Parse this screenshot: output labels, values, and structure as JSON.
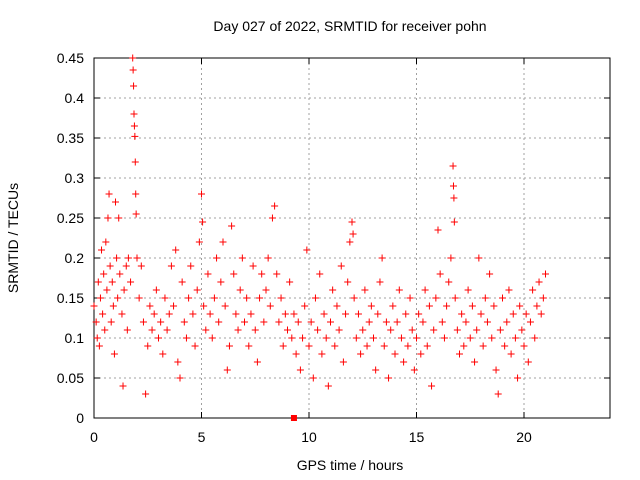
{
  "chart_data": {
    "type": "scatter",
    "title": "Day 027 of 2022, SRMTID for receiver pohn",
    "xlabel": "GPS time / hours",
    "ylabel": "SRMTID / TECUs",
    "xlim": [
      0,
      24
    ],
    "ylim": [
      0,
      0.45
    ],
    "x_ticks": [
      0,
      5,
      10,
      15,
      20
    ],
    "y_ticks": [
      0,
      0.05,
      0.1,
      0.15,
      0.2,
      0.25,
      0.3,
      0.35,
      0.4,
      0.45
    ],
    "x_tick_labels": [
      "0",
      "5",
      "10",
      "15",
      "20"
    ],
    "y_tick_labels": [
      "0",
      "0.05",
      "0.1",
      "0.15",
      "0.2",
      "0.25",
      "0.3",
      "0.35",
      "0.4",
      "0.45"
    ],
    "grid": true,
    "marker": "+",
    "color": "#ff0000",
    "series": [
      {
        "name": "SRMTID",
        "points": [
          [
            0.0,
            0.14
          ],
          [
            0.1,
            0.12
          ],
          [
            0.15,
            0.1
          ],
          [
            0.2,
            0.17
          ],
          [
            0.25,
            0.09
          ],
          [
            0.3,
            0.15
          ],
          [
            0.35,
            0.21
          ],
          [
            0.4,
            0.13
          ],
          [
            0.45,
            0.18
          ],
          [
            0.5,
            0.11
          ],
          [
            0.55,
            0.22
          ],
          [
            0.6,
            0.16
          ],
          [
            0.65,
            0.25
          ],
          [
            0.7,
            0.28
          ],
          [
            0.75,
            0.19
          ],
          [
            0.8,
            0.12
          ],
          [
            0.85,
            0.17
          ],
          [
            0.9,
            0.14
          ],
          [
            0.95,
            0.08
          ],
          [
            1.0,
            0.27
          ],
          [
            1.05,
            0.2
          ],
          [
            1.1,
            0.15
          ],
          [
            1.15,
            0.25
          ],
          [
            1.2,
            0.18
          ],
          [
            1.3,
            0.13
          ],
          [
            1.35,
            0.04
          ],
          [
            1.4,
            0.16
          ],
          [
            1.5,
            0.19
          ],
          [
            1.55,
            0.11
          ],
          [
            1.6,
            0.2
          ],
          [
            1.7,
            0.17
          ],
          [
            1.8,
            0.45
          ],
          [
            1.82,
            0.435
          ],
          [
            1.84,
            0.415
          ],
          [
            1.86,
            0.38
          ],
          [
            1.88,
            0.365
          ],
          [
            1.9,
            0.352
          ],
          [
            1.92,
            0.32
          ],
          [
            1.94,
            0.28
          ],
          [
            1.96,
            0.255
          ],
          [
            2.0,
            0.2
          ],
          [
            2.1,
            0.15
          ],
          [
            2.2,
            0.19
          ],
          [
            2.3,
            0.12
          ],
          [
            2.4,
            0.03
          ],
          [
            2.5,
            0.09
          ],
          [
            2.6,
            0.14
          ],
          [
            2.7,
            0.11
          ],
          [
            2.8,
            0.13
          ],
          [
            2.9,
            0.16
          ],
          [
            3.0,
            0.1
          ],
          [
            3.1,
            0.12
          ],
          [
            3.2,
            0.08
          ],
          [
            3.3,
            0.15
          ],
          [
            3.4,
            0.11
          ],
          [
            3.5,
            0.13
          ],
          [
            3.6,
            0.19
          ],
          [
            3.7,
            0.14
          ],
          [
            3.8,
            0.21
          ],
          [
            3.9,
            0.07
          ],
          [
            4.0,
            0.05
          ],
          [
            4.1,
            0.17
          ],
          [
            4.2,
            0.12
          ],
          [
            4.3,
            0.1
          ],
          [
            4.4,
            0.15
          ],
          [
            4.5,
            0.19
          ],
          [
            4.6,
            0.13
          ],
          [
            4.7,
            0.09
          ],
          [
            4.8,
            0.16
          ],
          [
            4.9,
            0.22
          ],
          [
            5.0,
            0.28
          ],
          [
            5.05,
            0.245
          ],
          [
            5.1,
            0.14
          ],
          [
            5.2,
            0.11
          ],
          [
            5.3,
            0.18
          ],
          [
            5.4,
            0.13
          ],
          [
            5.5,
            0.1
          ],
          [
            5.6,
            0.15
          ],
          [
            5.7,
            0.2
          ],
          [
            5.8,
            0.12
          ],
          [
            5.9,
            0.17
          ],
          [
            6.0,
            0.22
          ],
          [
            6.1,
            0.14
          ],
          [
            6.2,
            0.06
          ],
          [
            6.3,
            0.09
          ],
          [
            6.4,
            0.24
          ],
          [
            6.5,
            0.18
          ],
          [
            6.6,
            0.13
          ],
          [
            6.7,
            0.11
          ],
          [
            6.8,
            0.16
          ],
          [
            6.9,
            0.2
          ],
          [
            7.0,
            0.12
          ],
          [
            7.1,
            0.15
          ],
          [
            7.2,
            0.09
          ],
          [
            7.3,
            0.13
          ],
          [
            7.4,
            0.19
          ],
          [
            7.5,
            0.11
          ],
          [
            7.6,
            0.07
          ],
          [
            7.7,
            0.15
          ],
          [
            7.8,
            0.18
          ],
          [
            7.9,
            0.12
          ],
          [
            8.0,
            0.16
          ],
          [
            8.1,
            0.2
          ],
          [
            8.2,
            0.14
          ],
          [
            8.3,
            0.25
          ],
          [
            8.4,
            0.265
          ],
          [
            8.5,
            0.18
          ],
          [
            8.6,
            0.12
          ],
          [
            8.7,
            0.15
          ],
          [
            8.8,
            0.09
          ],
          [
            8.9,
            0.13
          ],
          [
            9.0,
            0.11
          ],
          [
            9.1,
            0.17
          ],
          [
            9.2,
            0.1
          ],
          [
            9.3,
            0.13
          ],
          [
            9.4,
            0.08
          ],
          [
            9.5,
            0.12
          ],
          [
            9.6,
            0.06
          ],
          [
            9.7,
            0.1
          ],
          [
            9.8,
            0.14
          ],
          [
            9.9,
            0.21
          ],
          [
            10.0,
            0.09
          ],
          [
            10.1,
            0.12
          ],
          [
            10.2,
            0.05
          ],
          [
            10.3,
            0.15
          ],
          [
            10.4,
            0.11
          ],
          [
            10.5,
            0.18
          ],
          [
            10.6,
            0.08
          ],
          [
            10.7,
            0.13
          ],
          [
            10.8,
            0.1
          ],
          [
            10.9,
            0.04
          ],
          [
            11.0,
            0.12
          ],
          [
            11.1,
            0.16
          ],
          [
            11.2,
            0.09
          ],
          [
            11.3,
            0.14
          ],
          [
            11.4,
            0.11
          ],
          [
            11.5,
            0.19
          ],
          [
            11.6,
            0.07
          ],
          [
            11.7,
            0.13
          ],
          [
            11.8,
            0.17
          ],
          [
            11.9,
            0.22
          ],
          [
            12.0,
            0.245
          ],
          [
            12.05,
            0.23
          ],
          [
            12.1,
            0.15
          ],
          [
            12.2,
            0.1
          ],
          [
            12.3,
            0.13
          ],
          [
            12.4,
            0.08
          ],
          [
            12.5,
            0.11
          ],
          [
            12.6,
            0.16
          ],
          [
            12.7,
            0.09
          ],
          [
            12.8,
            0.12
          ],
          [
            12.9,
            0.14
          ],
          [
            13.0,
            0.1
          ],
          [
            13.1,
            0.06
          ],
          [
            13.2,
            0.13
          ],
          [
            13.3,
            0.17
          ],
          [
            13.4,
            0.2
          ],
          [
            13.5,
            0.09
          ],
          [
            13.6,
            0.12
          ],
          [
            13.7,
            0.05
          ],
          [
            13.8,
            0.11
          ],
          [
            13.9,
            0.14
          ],
          [
            14.0,
            0.08
          ],
          [
            14.1,
            0.12
          ],
          [
            14.2,
            0.16
          ],
          [
            14.3,
            0.1
          ],
          [
            14.4,
            0.07
          ],
          [
            14.5,
            0.13
          ],
          [
            14.6,
            0.09
          ],
          [
            14.7,
            0.15
          ],
          [
            14.8,
            0.11
          ],
          [
            14.9,
            0.06
          ],
          [
            15.0,
            0.1
          ],
          [
            15.1,
            0.13
          ],
          [
            15.2,
            0.08
          ],
          [
            15.3,
            0.12
          ],
          [
            15.4,
            0.16
          ],
          [
            15.5,
            0.09
          ],
          [
            15.6,
            0.14
          ],
          [
            15.7,
            0.04
          ],
          [
            15.8,
            0.11
          ],
          [
            15.9,
            0.15
          ],
          [
            16.0,
            0.235
          ],
          [
            16.1,
            0.18
          ],
          [
            16.2,
            0.12
          ],
          [
            16.3,
            0.1
          ],
          [
            16.4,
            0.14
          ],
          [
            16.5,
            0.17
          ],
          [
            16.6,
            0.2
          ],
          [
            16.7,
            0.315
          ],
          [
            16.72,
            0.29
          ],
          [
            16.74,
            0.275
          ],
          [
            16.76,
            0.245
          ],
          [
            16.8,
            0.15
          ],
          [
            16.9,
            0.11
          ],
          [
            17.0,
            0.08
          ],
          [
            17.1,
            0.13
          ],
          [
            17.2,
            0.09
          ],
          [
            17.3,
            0.12
          ],
          [
            17.4,
            0.16
          ],
          [
            17.5,
            0.1
          ],
          [
            17.6,
            0.14
          ],
          [
            17.7,
            0.07
          ],
          [
            17.8,
            0.11
          ],
          [
            17.9,
            0.2
          ],
          [
            18.0,
            0.13
          ],
          [
            18.1,
            0.09
          ],
          [
            18.2,
            0.15
          ],
          [
            18.3,
            0.12
          ],
          [
            18.4,
            0.18
          ],
          [
            18.5,
            0.1
          ],
          [
            18.6,
            0.14
          ],
          [
            18.7,
            0.06
          ],
          [
            18.8,
            0.03
          ],
          [
            18.9,
            0.11
          ],
          [
            19.0,
            0.15
          ],
          [
            19.1,
            0.09
          ],
          [
            19.2,
            0.12
          ],
          [
            19.3,
            0.16
          ],
          [
            19.4,
            0.08
          ],
          [
            19.5,
            0.13
          ],
          [
            19.6,
            0.1
          ],
          [
            19.7,
            0.05
          ],
          [
            19.8,
            0.14
          ],
          [
            19.9,
            0.11
          ],
          [
            20.0,
            0.09
          ],
          [
            20.1,
            0.13
          ],
          [
            20.2,
            0.07
          ],
          [
            20.3,
            0.12
          ],
          [
            20.4,
            0.16
          ],
          [
            20.5,
            0.1
          ],
          [
            20.6,
            0.14
          ],
          [
            20.7,
            0.17
          ],
          [
            20.8,
            0.13
          ],
          [
            20.9,
            0.15
          ],
          [
            21.0,
            0.18
          ]
        ]
      }
    ],
    "extra_marker": {
      "x": 9.3,
      "y": 0.0,
      "shape": "square"
    }
  }
}
